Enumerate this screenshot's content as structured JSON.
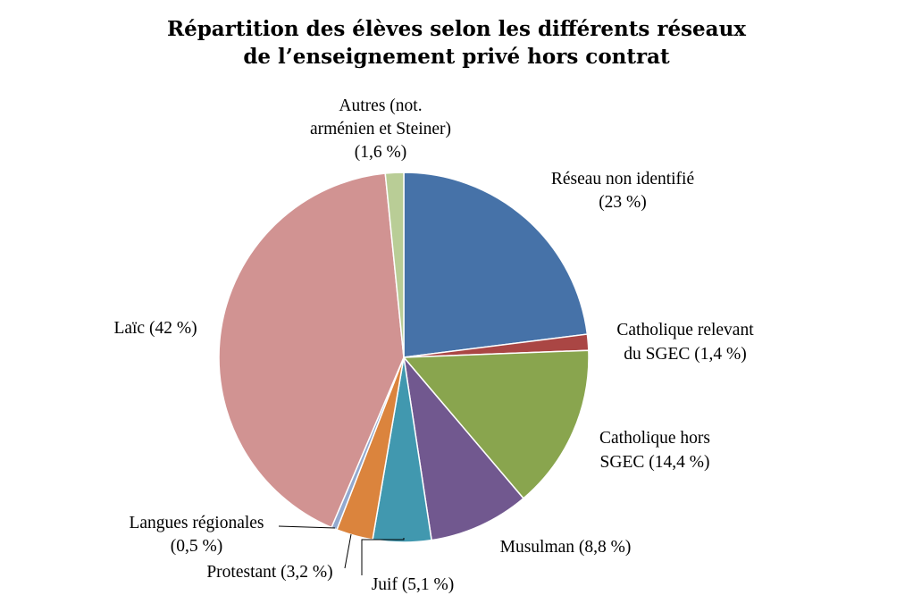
{
  "chart_data": {
    "type": "pie",
    "title": "Répartition des élèves selon les différents réseaux de l’enseignement privé hors contrat",
    "title_lines": [
      "Répartition des élèves selon les différents réseaux",
      "de l’enseignement privé hors contrat"
    ],
    "start_angle": "12 o'clock",
    "direction": "clockwise",
    "slices": [
      {
        "name": "Réseau non identifié",
        "value": 23,
        "color": "#4672A8",
        "label_lines": [
          "Réseau non identifié",
          "(23 %)"
        ]
      },
      {
        "name": "Catholique relevant du SGEC",
        "value": 1.4,
        "color": "#AA4644",
        "label_lines": [
          "Catholique relevant",
          "du SGEC (1,4 %)"
        ]
      },
      {
        "name": "Catholique hors SGEC",
        "value": 14.4,
        "color": "#89A54E",
        "label_lines": [
          "Catholique hors",
          "SGEC (14,4 %)"
        ]
      },
      {
        "name": "Musulman",
        "value": 8.8,
        "color": "#71588F",
        "label_lines": [
          "Musulman (8,8 %)"
        ]
      },
      {
        "name": "Juif",
        "value": 5.1,
        "color": "#4198AF",
        "label_lines": [
          "Juif (5,1 %)"
        ]
      },
      {
        "name": "Protestant",
        "value": 3.2,
        "color": "#DB843D",
        "label_lines": [
          "Protestant (3,2 %)"
        ]
      },
      {
        "name": "Langues régionales",
        "value": 0.5,
        "color": "#93A9CF",
        "label_lines": [
          "Langues régionales",
          "(0,5 %)"
        ]
      },
      {
        "name": "Laïc",
        "value": 42,
        "color": "#D19392",
        "label_lines": [
          "Laïc (42 %)"
        ]
      },
      {
        "name": "Autres (not. arménien et Steiner)",
        "value": 1.6,
        "color": "#B9CD96",
        "label_lines": [
          "Autres (not.",
          "arménien et Steiner)",
          "(1,6 %)"
        ]
      }
    ]
  }
}
